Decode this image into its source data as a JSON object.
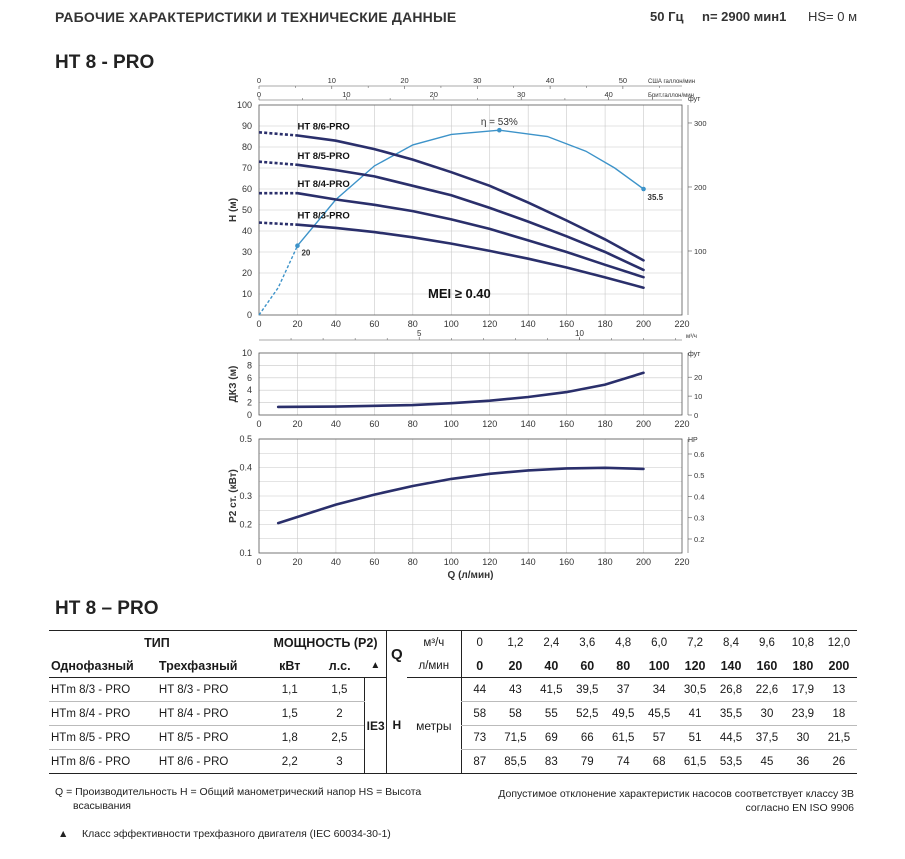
{
  "header": {
    "title": "РАБОЧИЕ ХАРАКТЕРИСТИКИ И ТЕХНИЧЕСКИЕ ДАННЫЕ",
    "freq": "50 Гц",
    "speed": "n= 2900 мин1",
    "hs": "HS= 0 м"
  },
  "model_title_top": "HT 8 - PRO",
  "model_title_bottom": "HT 8 – PRO",
  "chart_data": [
    {
      "type": "line",
      "x_unit": "л/мин",
      "ylabel": "H (м)",
      "ylabel_right": "фут",
      "xlim": [
        0,
        220
      ],
      "ylim": [
        0,
        100
      ],
      "x_ticks": [
        "0",
        "20",
        "40",
        "60",
        "80",
        "100",
        "120",
        "140",
        "160",
        "180",
        "200",
        "220"
      ],
      "y_ticks": [
        "0",
        "10",
        "20",
        "30",
        "40",
        "50",
        "60",
        "70",
        "80",
        "90",
        "100"
      ],
      "y_right_ticks": [
        "100",
        "200",
        "300"
      ],
      "top_axis_us": {
        "label": "США галлон/мин",
        "ticks": [
          "0",
          "10",
          "20",
          "30",
          "40",
          "50"
        ]
      },
      "top_axis_imp": {
        "label": "Брит.галлон/мин",
        "ticks": [
          "0",
          "10",
          "20",
          "30",
          "40"
        ]
      },
      "bottom_axis_m3h": {
        "label": "м³/ч",
        "ticks": [
          "5",
          "10"
        ]
      },
      "series": [
        {
          "name": "HT 8/6-PRO",
          "x": [
            0,
            20,
            40,
            60,
            80,
            100,
            120,
            140,
            160,
            180,
            200
          ],
          "y": [
            87,
            85.5,
            83,
            79,
            74,
            68,
            61.5,
            53.5,
            45,
            36,
            26
          ]
        },
        {
          "name": "HT 8/5-PRO",
          "x": [
            0,
            20,
            40,
            60,
            80,
            100,
            120,
            140,
            160,
            180,
            200
          ],
          "y": [
            73,
            71.5,
            69,
            66,
            61.5,
            57,
            51,
            44.5,
            37.5,
            30,
            21.5
          ]
        },
        {
          "name": "HT 8/4-PRO",
          "x": [
            0,
            20,
            40,
            60,
            80,
            100,
            120,
            140,
            160,
            180,
            200
          ],
          "y": [
            58,
            58,
            55,
            52.5,
            49.5,
            45.5,
            41,
            35.5,
            30,
            23.9,
            18
          ]
        },
        {
          "name": "HT 8/3-PRO",
          "x": [
            0,
            20,
            40,
            60,
            80,
            100,
            120,
            140,
            160,
            180,
            200
          ],
          "y": [
            44,
            43,
            41.5,
            39.5,
            37,
            34,
            30.5,
            26.8,
            22.6,
            17.9,
            13
          ]
        }
      ],
      "efficiency_curve": {
        "x": [
          0,
          10,
          20,
          40,
          60,
          80,
          100,
          125,
          150,
          170,
          185,
          200
        ],
        "y": [
          0,
          13,
          33,
          55,
          71,
          81,
          86,
          88,
          85,
          78,
          70,
          60
        ]
      },
      "annotations": {
        "eta": "η = 53%",
        "eff_left": "20",
        "eff_right": "35.5",
        "mei": "MEI ≥ 0.40"
      }
    },
    {
      "type": "line",
      "ylabel": "ДКЗ (м)",
      "ylabel_right": "фут",
      "xlim": [
        0,
        220
      ],
      "ylim": [
        0,
        10
      ],
      "y_ticks": [
        "0",
        "2",
        "4",
        "6",
        "8",
        "10"
      ],
      "y_right_ticks": [
        "0",
        "10",
        "20"
      ],
      "x_ticks": [
        "0",
        "20",
        "40",
        "60",
        "80",
        "100",
        "120",
        "140",
        "160",
        "180",
        "200",
        "220"
      ],
      "series": [
        {
          "x": [
            10,
            40,
            80,
            100,
            120,
            140,
            160,
            180,
            200
          ],
          "y": [
            1.3,
            1.35,
            1.6,
            1.9,
            2.3,
            2.9,
            3.7,
            4.9,
            6.8
          ]
        }
      ]
    },
    {
      "type": "line",
      "ylabel": "P2 ст. (кВт)",
      "ylabel_right": "HP",
      "xlabel": "Q (л/мин)",
      "xlim": [
        0,
        220
      ],
      "ylim": [
        0.1,
        0.5
      ],
      "y_ticks": [
        "0.1",
        "0.2",
        "0.3",
        "0.4",
        "0.5"
      ],
      "y_right_ticks": [
        "0.2",
        "0.3",
        "0.4",
        "0.5",
        "0.6"
      ],
      "x_ticks": [
        "0",
        "20",
        "40",
        "60",
        "80",
        "100",
        "120",
        "140",
        "160",
        "180",
        "200",
        "220"
      ],
      "series": [
        {
          "x": [
            10,
            40,
            60,
            80,
            100,
            120,
            140,
            160,
            180,
            200
          ],
          "y": [
            0.205,
            0.27,
            0.305,
            0.335,
            0.36,
            0.378,
            0.39,
            0.397,
            0.399,
            0.395
          ]
        }
      ]
    }
  ],
  "table": {
    "hdr_type": "ТИП",
    "hdr_power": "МОЩНОСТЬ (P2)",
    "hdr_single": "Однофазный",
    "hdr_three": "Трехфазный",
    "hdr_kw": "кВт",
    "hdr_hp": "л.с.",
    "hdr_tri": "▲",
    "hdr_q": "Q",
    "hdr_m3h": "м³/ч",
    "hdr_lmin": "л/мин",
    "ie3": "IE3",
    "h_label": "H",
    "h_unit": "метры",
    "q_m3h": [
      "0",
      "1,2",
      "2,4",
      "3,6",
      "4,8",
      "6,0",
      "7,2",
      "8,4",
      "9,6",
      "10,8",
      "12,0"
    ],
    "q_lmin": [
      "0",
      "20",
      "40",
      "60",
      "80",
      "100",
      "120",
      "140",
      "160",
      "180",
      "200"
    ],
    "rows": [
      {
        "single": "HTm 8/3 - PRO",
        "three": "HT 8/3 - PRO",
        "kw": "1,1",
        "hp": "1,5",
        "h": [
          "44",
          "43",
          "41,5",
          "39,5",
          "37",
          "34",
          "30,5",
          "26,8",
          "22,6",
          "17,9",
          "13"
        ]
      },
      {
        "single": "HTm 8/4 - PRO",
        "three": "HT 8/4 - PRO",
        "kw": "1,5",
        "hp": "2",
        "h": [
          "58",
          "58",
          "55",
          "52,5",
          "49,5",
          "45,5",
          "41",
          "35,5",
          "30",
          "23,9",
          "18"
        ]
      },
      {
        "single": "HTm 8/5 - PRO",
        "three": "HT 8/5 - PRO",
        "kw": "1,8",
        "hp": "2,5",
        "h": [
          "73",
          "71,5",
          "69",
          "66",
          "61,5",
          "57",
          "51",
          "44,5",
          "37,5",
          "30",
          "21,5"
        ]
      },
      {
        "single": "HTm 8/6 - PRO",
        "three": "HT 8/6 - PRO",
        "kw": "2,2",
        "hp": "3",
        "h": [
          "87",
          "85,5",
          "83",
          "79",
          "74",
          "68",
          "61,5",
          "53,5",
          "45",
          "36",
          "26"
        ]
      }
    ]
  },
  "notes": {
    "legend_line1": "Q =  Производительность H = Общий манометрический напор HS = Высота",
    "legend_line2": "всасывания",
    "tolerance_line1": "Допустимое отклонение характеристик насосов соответствует классу 3B",
    "tolerance_line2": "согласно EN ISO 9906",
    "triangle": "▲",
    "motor_class": "Класс эффективности трехфазного двигателя (IEC 60034-30-1)"
  },
  "colors": {
    "curve": "#2a2f6b",
    "efficiency": "#3d93c9",
    "text": "#222222"
  }
}
